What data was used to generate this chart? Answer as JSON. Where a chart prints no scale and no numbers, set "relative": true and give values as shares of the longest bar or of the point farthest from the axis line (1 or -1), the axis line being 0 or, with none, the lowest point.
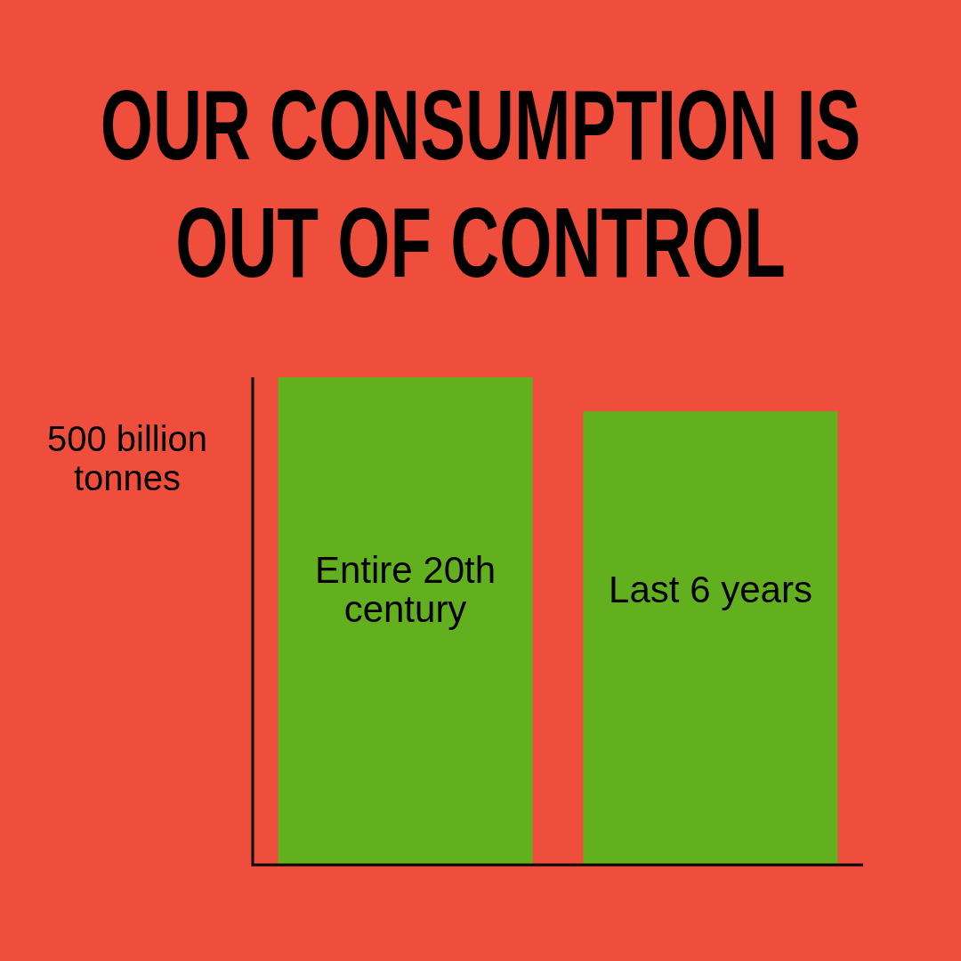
{
  "chart_data": {
    "type": "bar",
    "title": "OUR CONSUMPTION IS OUT OF CONTROL",
    "ylabel": "500 billion tonnes",
    "categories": [
      "Entire 20th century",
      "Last 6 years"
    ],
    "values": [
      1,
      0.93
    ],
    "color": "#63b01e",
    "relative": true,
    "legend": false
  }
}
